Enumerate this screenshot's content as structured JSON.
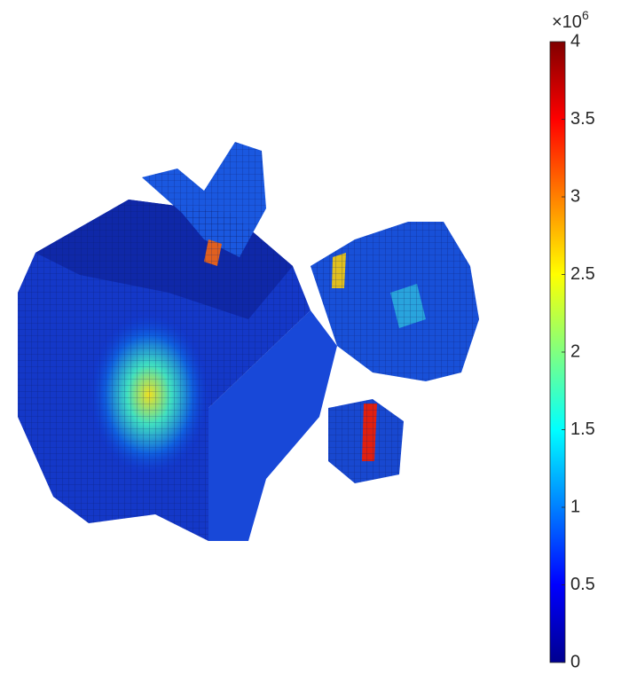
{
  "chart_data": {
    "type": "voxel",
    "colormap": "jet",
    "colorbar": {
      "clim": [
        0,
        4
      ],
      "ticks": [
        0,
        0.5,
        1,
        1.5,
        2,
        2.5,
        3,
        3.5,
        4
      ],
      "multiplier": {
        "base": "×10",
        "exponent": "6"
      }
    }
  }
}
